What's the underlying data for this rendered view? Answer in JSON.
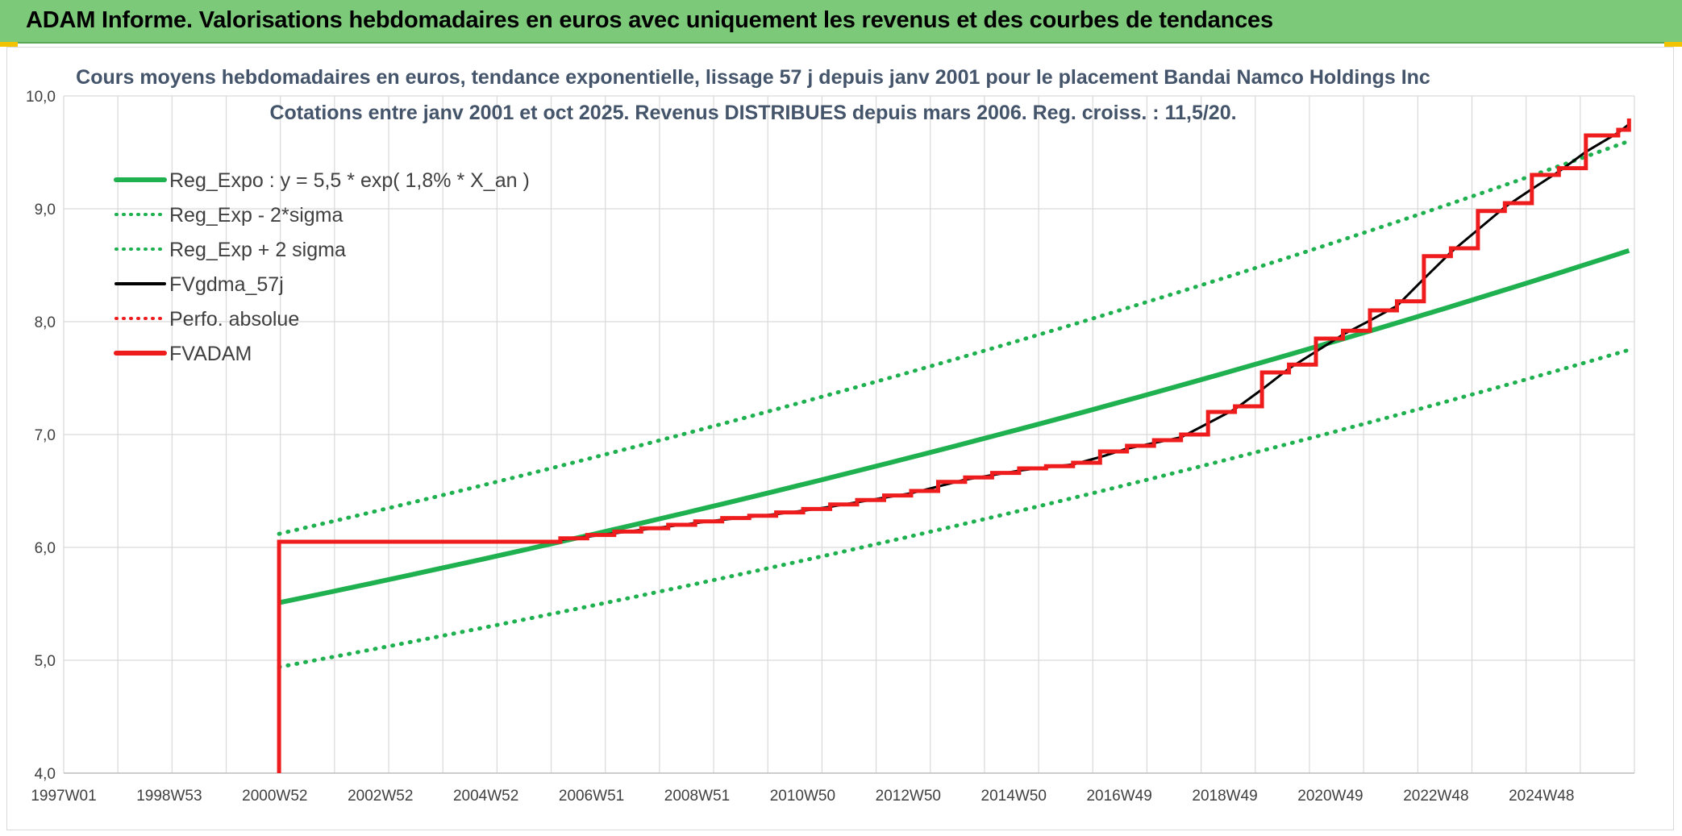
{
  "banner": {
    "title": "ADAM Informe. Valorisations hebdomadaires en euros avec uniquement les revenus et des courbes de tendances"
  },
  "colors": {
    "banner_bg": "#7dc97a",
    "green": "#1fb04f",
    "red": "#ee1c1c",
    "black": "#000000",
    "grid": "#d9d9d9"
  },
  "chart_data": {
    "type": "line",
    "title_lines": [
      "Cours moyens hebdomadaires en euros, tendance exponentielle, lissage 57 j depuis janv 2001 pour le placement Bandai Namco Holdings Inc",
      "Cotations entre janv 2001 et oct 2025. Revenus DISTRIBUES depuis mars 2006. Reg. croiss. : 11,5/20."
    ],
    "x_tick_labels": [
      "1997W01",
      "1998W53",
      "2000W52",
      "2002W52",
      "2004W52",
      "2006W51",
      "2008W51",
      "2010W50",
      "2012W50",
      "2014W50",
      "2016W49",
      "2018W49",
      "2020W49",
      "2022W48",
      "2024W48"
    ],
    "x_range": [
      1997.0,
      2026.1
    ],
    "ylim": [
      4.0,
      10.0
    ],
    "y_ticks": [
      4.0,
      5.0,
      6.0,
      7.0,
      8.0,
      9.0,
      10.0
    ],
    "y_tick_labels": [
      "4,0",
      "5,0",
      "6,0",
      "7,0",
      "8,0",
      "9,0",
      "10,0"
    ],
    "grid": true,
    "legend_position": "top-left",
    "legend": [
      {
        "label": "Reg_Expo : y = 5,5 * exp( 1,8% *  X_an )",
        "style": "solid-thick",
        "color": "#1fb04f"
      },
      {
        "label": "Reg_Exp - 2*sigma",
        "style": "dotted",
        "color": "#1fb04f"
      },
      {
        "label": "Reg_Exp + 2 sigma",
        "style": "dotted",
        "color": "#1fb04f"
      },
      {
        "label": "FVgdma_57j",
        "style": "solid",
        "color": "#000000"
      },
      {
        "label": "Perfo. absolue",
        "style": "dotted",
        "color": "#ee1c1c"
      },
      {
        "label": "FVADAM",
        "style": "solid-thick",
        "color": "#ee1c1c"
      }
    ],
    "series": [
      {
        "name": "Reg_Expo : y = 5,5 * exp( 1,8% *  X_an )",
        "x": [
          2000.99,
          2026.0
        ],
        "start": 5.51,
        "end": 8.63,
        "style": "exponential"
      },
      {
        "name": "Reg_Exp - 2*sigma",
        "x": [
          2000.99,
          2026.0
        ],
        "start": 4.94,
        "end": 7.75,
        "style": "exponential"
      },
      {
        "name": "Reg_Exp + 2 sigma",
        "x": [
          2000.99,
          2026.0
        ],
        "start": 6.12,
        "end": 9.6,
        "style": "exponential"
      },
      {
        "name": "FVADAM",
        "steps": [
          {
            "x": 2000.99,
            "y": 4.0
          },
          {
            "x": 2000.99,
            "y": 6.05
          },
          {
            "x": 2006.2,
            "y": 6.08
          },
          {
            "x": 2006.7,
            "y": 6.11
          },
          {
            "x": 2007.2,
            "y": 6.14
          },
          {
            "x": 2007.7,
            "y": 6.17
          },
          {
            "x": 2008.2,
            "y": 6.2
          },
          {
            "x": 2008.7,
            "y": 6.23
          },
          {
            "x": 2009.2,
            "y": 6.26
          },
          {
            "x": 2009.7,
            "y": 6.28
          },
          {
            "x": 2010.2,
            "y": 6.31
          },
          {
            "x": 2010.7,
            "y": 6.34
          },
          {
            "x": 2011.2,
            "y": 6.38
          },
          {
            "x": 2011.7,
            "y": 6.42
          },
          {
            "x": 2012.2,
            "y": 6.46
          },
          {
            "x": 2012.7,
            "y": 6.5
          },
          {
            "x": 2013.2,
            "y": 6.58
          },
          {
            "x": 2013.7,
            "y": 6.62
          },
          {
            "x": 2014.2,
            "y": 6.66
          },
          {
            "x": 2014.7,
            "y": 6.7
          },
          {
            "x": 2015.2,
            "y": 6.72
          },
          {
            "x": 2015.7,
            "y": 6.75
          },
          {
            "x": 2016.2,
            "y": 6.85
          },
          {
            "x": 2016.7,
            "y": 6.9
          },
          {
            "x": 2017.2,
            "y": 6.95
          },
          {
            "x": 2017.7,
            "y": 7.0
          },
          {
            "x": 2018.2,
            "y": 7.2
          },
          {
            "x": 2018.7,
            "y": 7.25
          },
          {
            "x": 2019.2,
            "y": 7.55
          },
          {
            "x": 2019.7,
            "y": 7.62
          },
          {
            "x": 2020.2,
            "y": 7.85
          },
          {
            "x": 2020.7,
            "y": 7.92
          },
          {
            "x": 2021.2,
            "y": 8.1
          },
          {
            "x": 2021.7,
            "y": 8.18
          },
          {
            "x": 2022.2,
            "y": 8.58
          },
          {
            "x": 2022.7,
            "y": 8.65
          },
          {
            "x": 2023.2,
            "y": 8.98
          },
          {
            "x": 2023.7,
            "y": 9.05
          },
          {
            "x": 2024.2,
            "y": 9.3
          },
          {
            "x": 2024.7,
            "y": 9.36
          },
          {
            "x": 2025.2,
            "y": 9.65
          },
          {
            "x": 2025.8,
            "y": 9.7
          },
          {
            "x": 2026.0,
            "y": 9.8
          }
        ]
      },
      {
        "name": "FVgdma_57j",
        "x_start": 2006.0,
        "note_visible": "smoothed curve following FVADAM steps"
      }
    ]
  }
}
